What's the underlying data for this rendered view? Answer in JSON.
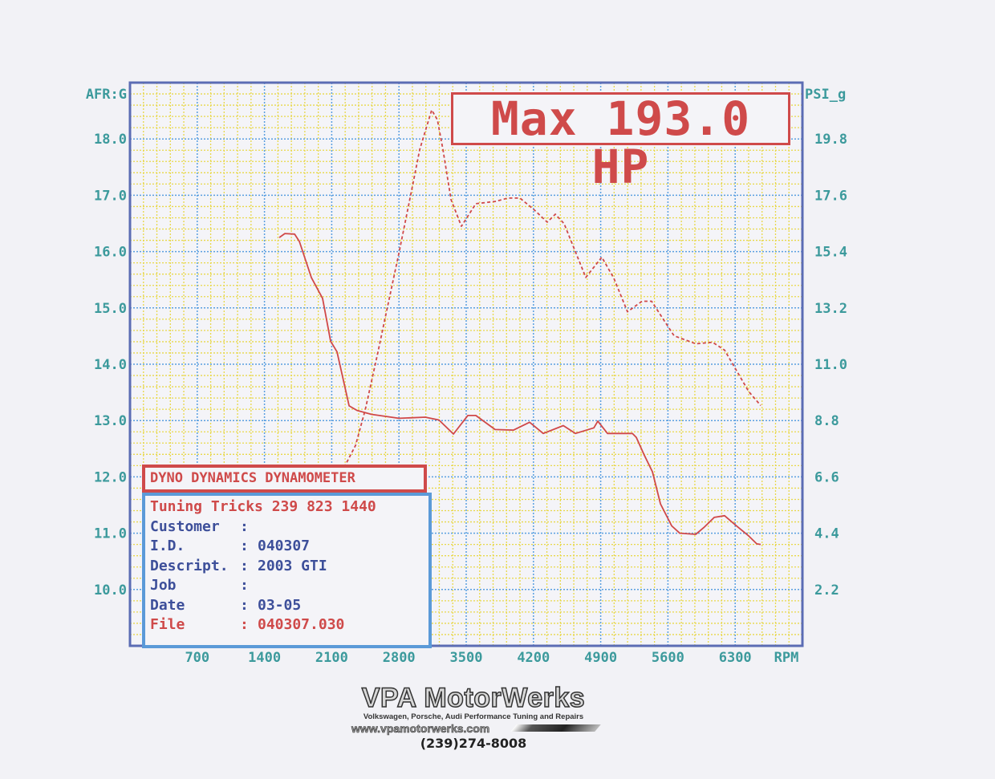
{
  "chart_data": {
    "type": "line",
    "title": "Max 193.0 HP",
    "xlabel": "RPM",
    "ylabel_left": "AFR:G",
    "ylabel_right": "PSI_g",
    "xlim": [
      0,
      7000
    ],
    "ylim_left": [
      9,
      19
    ],
    "ylim_right": [
      0,
      22
    ],
    "grid": true,
    "x_ticks": [
      "700",
      "1400",
      "2100",
      "2800",
      "3500",
      "4200",
      "4900",
      "5600",
      "6300"
    ],
    "y_ticks_left": [
      "18.0",
      "17.0",
      "16.0",
      "15.0",
      "14.0",
      "13.0",
      "12.0",
      "11.0",
      "10.0"
    ],
    "y_ticks_right": [
      "19.8",
      "17.6",
      "15.4",
      "13.2",
      "11.0",
      "8.8",
      "6.6",
      "4.4",
      "2.2"
    ],
    "colors": {
      "series": "#d04848",
      "major_grid": "#5a9fe0",
      "minor_grid": "#e8d84a",
      "ticks": "#3c9a9c",
      "frame": "#5b6cb4"
    },
    "series": [
      {
        "axis": "left",
        "style": "solid",
        "x": [
          1554,
          1612,
          1713,
          1763,
          1888,
          2005,
          2088,
          2155,
          2281,
          2364,
          2515,
          2799,
          3074,
          3216,
          3367,
          3517,
          3600,
          3801,
          3993,
          4160,
          4302,
          4511,
          4637,
          4829,
          4870,
          4971,
          5230,
          5271,
          5355,
          5439,
          5522,
          5639,
          5723,
          5890,
          5973,
          6082,
          6190,
          6307,
          6441,
          6525,
          6566
        ],
        "y": [
          16.25,
          16.32,
          16.31,
          16.18,
          15.54,
          15.17,
          14.41,
          14.22,
          13.26,
          13.18,
          13.11,
          13.04,
          13.06,
          13.01,
          12.76,
          13.09,
          13.09,
          12.84,
          12.83,
          12.97,
          12.77,
          12.91,
          12.77,
          12.87,
          12.99,
          12.77,
          12.77,
          12.7,
          12.38,
          12.09,
          11.52,
          11.13,
          11.0,
          10.98,
          11.1,
          11.28,
          11.31,
          11.14,
          10.95,
          10.81,
          10.8
        ]
      },
      {
        "axis": "right",
        "style": "dashed",
        "x": [
          1554,
          2348,
          2448,
          2573,
          2682,
          2799,
          2924,
          3016,
          3141,
          3200,
          3258,
          3342,
          3450,
          3600,
          3801,
          3935,
          4060,
          4202,
          4344,
          4428,
          4519,
          4745,
          4912,
          5037,
          5179,
          5330,
          5430,
          5664,
          5890,
          6065,
          6190,
          6441,
          6566
        ],
        "y": [
          2.11,
          7.83,
          9.21,
          11.33,
          13.27,
          15.33,
          17.64,
          19.39,
          20.93,
          20.55,
          19.39,
          17.43,
          16.39,
          17.27,
          17.36,
          17.49,
          17.49,
          17.05,
          16.55,
          16.86,
          16.49,
          14.39,
          15.18,
          14.36,
          13.05,
          13.46,
          13.46,
          12.11,
          11.8,
          11.86,
          11.55,
          9.93,
          9.39
        ]
      }
    ]
  },
  "header_box": "DYNO DYNAMICS DYNAMOMETER",
  "info": {
    "rows": [
      {
        "key": "Tuning Tricks 239 823 1440",
        "sep": "",
        "value": ""
      },
      {
        "key": "Customer",
        "sep": ":",
        "value": ""
      },
      {
        "key": "I.D.",
        "sep": ":",
        "value": "040307"
      },
      {
        "key": "Descript.",
        "sep": ":",
        "value": "2003 GTI"
      },
      {
        "key": "Job",
        "sep": ":",
        "value": ""
      },
      {
        "key": "Date",
        "sep": ":",
        "value": "03-05"
      },
      {
        "key": "File",
        "sep": ":",
        "value": "040307.030"
      }
    ]
  },
  "logo": {
    "name": "VPA MotorWerks",
    "tagline": "Volkswagen, Porsche, Audi Performance Tuning and Repairs",
    "url": "www.vpamotorwerks.com",
    "phone": "(239)274-8008"
  }
}
